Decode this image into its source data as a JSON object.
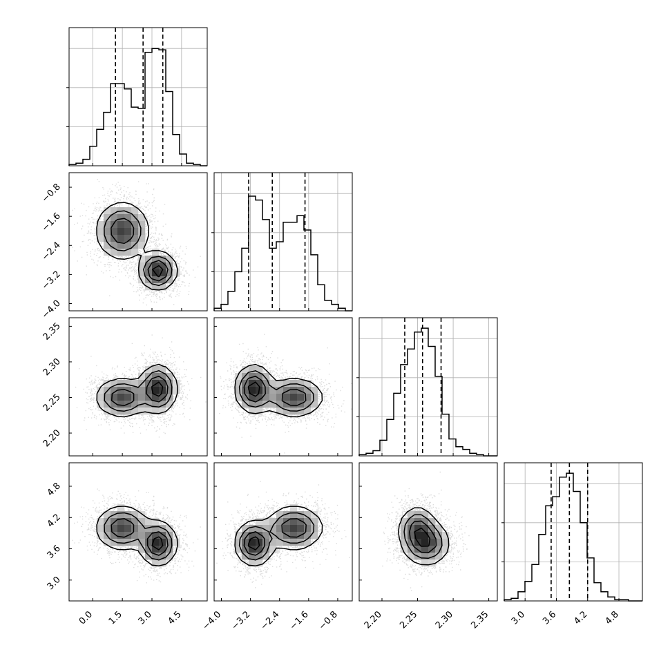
{
  "chart_data": {
    "type": "corner",
    "description_of_layout": "triangular matrix",
    "parameters": [
      {
        "ticks": [
          0.0,
          1.5,
          3.0,
          4.5
        ],
        "tick_labels": [
          "0.0",
          "1.5",
          "3.0",
          "4.5"
        ],
        "range": [
          -1.2,
          5.8
        ]
      },
      {
        "ticks": [
          -4.0,
          -3.2,
          -2.4,
          -1.6,
          -0.8
        ],
        "tick_labels": [
          "−4.0",
          "−3.2",
          "−2.4",
          "−1.6",
          "−0.8"
        ],
        "range": [
          -4.2,
          -0.4
        ]
      },
      {
        "ticks": [
          2.2,
          2.25,
          2.3,
          2.35
        ],
        "tick_labels": [
          "2.20",
          "2.25",
          "2.30",
          "2.35"
        ],
        "range": [
          2.168,
          2.362
        ]
      },
      {
        "ticks": [
          3.0,
          3.6,
          4.2,
          4.8
        ],
        "tick_labels": [
          "3.0",
          "3.6",
          "4.2",
          "4.8"
        ],
        "range": [
          2.6,
          5.25
        ]
      }
    ],
    "histograms": [
      {
        "param": 0,
        "bins_start": -1.2,
        "bin_width": 0.35,
        "counts": [
          0.01,
          0.02,
          0.05,
          0.15,
          0.28,
          0.41,
          0.63,
          0.63,
          0.59,
          0.45,
          0.44,
          0.87,
          0.9,
          0.89,
          0.57,
          0.24,
          0.09,
          0.02,
          0.01,
          0
        ],
        "quantiles": [
          1.15,
          2.55,
          3.55
        ]
      },
      {
        "param": 1,
        "bins_start": -4.2,
        "bin_width": 0.19,
        "counts": [
          0.02,
          0.05,
          0.15,
          0.3,
          0.48,
          0.88,
          0.85,
          0.7,
          0.48,
          0.53,
          0.68,
          0.68,
          0.73,
          0.62,
          0.43,
          0.2,
          0.08,
          0.05,
          0.02,
          0
        ],
        "quantiles": [
          -3.25,
          -2.6,
          -1.7
        ]
      },
      {
        "param": 2,
        "bins_start": 2.168,
        "bin_width": 0.0097,
        "counts": [
          0.01,
          0.02,
          0.04,
          0.12,
          0.28,
          0.48,
          0.7,
          0.82,
          0.95,
          0.98,
          0.84,
          0.61,
          0.32,
          0.13,
          0.07,
          0.05,
          0.02,
          0.01,
          0,
          0
        ],
        "quantiles": [
          2.232,
          2.257,
          2.283
        ]
      },
      {
        "param": 3,
        "bins_start": 2.6,
        "bin_width": 0.1325,
        "counts": [
          0.01,
          0.02,
          0.07,
          0.15,
          0.28,
          0.51,
          0.73,
          0.8,
          0.95,
          0.98,
          0.84,
          0.6,
          0.33,
          0.14,
          0.07,
          0.03,
          0.01,
          0.01,
          0,
          0
        ],
        "quantiles": [
          3.5,
          3.85,
          4.2
        ]
      }
    ],
    "clusters": [
      {
        "mean": [
          1.5,
          -2.0,
          2.25,
          4.0
        ],
        "sd": [
          0.65,
          0.38,
          0.013,
          0.2
        ],
        "weight": 0.45
      },
      {
        "mean": [
          3.3,
          -3.1,
          2.262,
          3.7
        ],
        "sd": [
          0.45,
          0.25,
          0.016,
          0.2
        ],
        "weight": 0.55
      }
    ]
  }
}
